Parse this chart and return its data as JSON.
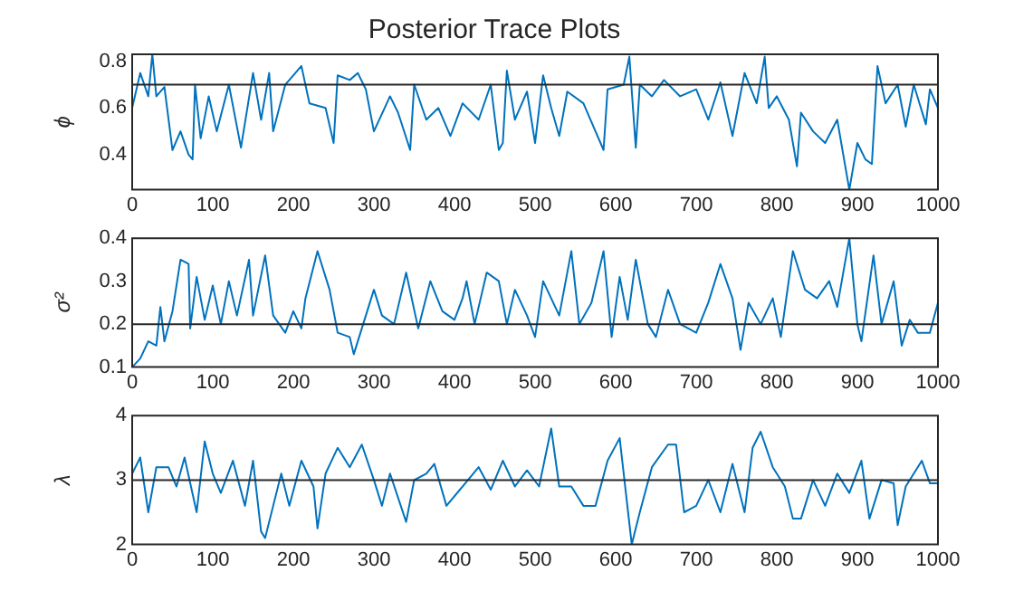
{
  "chart_data": [
    {
      "type": "line",
      "title": "Posterior Trace Plots",
      "ylabel": "ϕ",
      "xlim": [
        0,
        1000
      ],
      "xticks": [
        0,
        100,
        200,
        300,
        400,
        500,
        600,
        700,
        800,
        900,
        1000
      ],
      "ylim": [
        0.25,
        0.83
      ],
      "yticks": [
        0.4,
        0.6,
        0.8
      ],
      "grid": false,
      "legend": false,
      "marker": "none",
      "line_style": "solid",
      "ref_lines": [
        {
          "axis": "y",
          "value": 0.7,
          "color": "#262626"
        }
      ],
      "series": [
        {
          "color": "#0072bd",
          "x": [
            0,
            10,
            20,
            25,
            30,
            40,
            50,
            60,
            70,
            75,
            78,
            85,
            95,
            105,
            120,
            135,
            150,
            160,
            170,
            175,
            190,
            210,
            220,
            240,
            250,
            255,
            270,
            280,
            290,
            300,
            320,
            330,
            345,
            350,
            365,
            380,
            395,
            410,
            430,
            445,
            455,
            460,
            465,
            475,
            490,
            500,
            510,
            520,
            530,
            540,
            560,
            575,
            585,
            590,
            610,
            617,
            625,
            630,
            645,
            660,
            680,
            700,
            715,
            730,
            745,
            760,
            775,
            785,
            790,
            800,
            815,
            825,
            830,
            845,
            860,
            875,
            890,
            900,
            910,
            918,
            925,
            935,
            950,
            960,
            970,
            985,
            990,
            1000
          ],
          "values": [
            0.6,
            0.75,
            0.65,
            0.83,
            0.65,
            0.69,
            0.42,
            0.5,
            0.4,
            0.38,
            0.7,
            0.47,
            0.65,
            0.5,
            0.7,
            0.43,
            0.75,
            0.55,
            0.75,
            0.5,
            0.7,
            0.78,
            0.62,
            0.6,
            0.45,
            0.74,
            0.72,
            0.75,
            0.68,
            0.5,
            0.65,
            0.58,
            0.42,
            0.7,
            0.55,
            0.6,
            0.48,
            0.62,
            0.55,
            0.7,
            0.42,
            0.45,
            0.76,
            0.55,
            0.67,
            0.45,
            0.74,
            0.6,
            0.48,
            0.67,
            0.62,
            0.5,
            0.42,
            0.68,
            0.7,
            0.82,
            0.43,
            0.7,
            0.65,
            0.72,
            0.65,
            0.68,
            0.55,
            0.71,
            0.48,
            0.75,
            0.62,
            0.82,
            0.6,
            0.65,
            0.55,
            0.35,
            0.58,
            0.5,
            0.45,
            0.55,
            0.25,
            0.45,
            0.38,
            0.36,
            0.78,
            0.62,
            0.7,
            0.52,
            0.7,
            0.53,
            0.68,
            0.6
          ]
        }
      ]
    },
    {
      "type": "line",
      "ylabel": "σ²",
      "xlim": [
        0,
        1000
      ],
      "xticks": [
        0,
        100,
        200,
        300,
        400,
        500,
        600,
        700,
        800,
        900,
        1000
      ],
      "ylim": [
        0.1,
        0.4
      ],
      "yticks": [
        0.1,
        0.2,
        0.3,
        0.4
      ],
      "grid": false,
      "legend": false,
      "marker": "none",
      "line_style": "solid",
      "ref_lines": [
        {
          "axis": "y",
          "value": 0.2,
          "color": "#262626"
        }
      ],
      "series": [
        {
          "color": "#0072bd",
          "x": [
            0,
            10,
            20,
            30,
            35,
            40,
            50,
            60,
            70,
            72,
            80,
            90,
            100,
            110,
            120,
            130,
            145,
            150,
            165,
            175,
            190,
            200,
            210,
            215,
            230,
            245,
            255,
            270,
            275,
            280,
            290,
            300,
            310,
            325,
            340,
            355,
            370,
            385,
            400,
            410,
            415,
            425,
            440,
            455,
            465,
            475,
            490,
            500,
            510,
            530,
            545,
            555,
            570,
            585,
            595,
            605,
            615,
            625,
            640,
            650,
            665,
            680,
            700,
            715,
            730,
            745,
            755,
            765,
            780,
            795,
            805,
            820,
            835,
            850,
            865,
            875,
            890,
            900,
            905,
            920,
            930,
            945,
            955,
            965,
            975,
            990,
            1000
          ],
          "values": [
            0.1,
            0.12,
            0.16,
            0.15,
            0.24,
            0.16,
            0.23,
            0.35,
            0.34,
            0.19,
            0.31,
            0.21,
            0.29,
            0.2,
            0.3,
            0.22,
            0.35,
            0.22,
            0.36,
            0.22,
            0.18,
            0.23,
            0.19,
            0.26,
            0.37,
            0.28,
            0.18,
            0.17,
            0.13,
            0.16,
            0.22,
            0.28,
            0.22,
            0.2,
            0.32,
            0.19,
            0.3,
            0.23,
            0.21,
            0.26,
            0.3,
            0.2,
            0.32,
            0.3,
            0.2,
            0.28,
            0.22,
            0.17,
            0.3,
            0.22,
            0.37,
            0.2,
            0.25,
            0.37,
            0.17,
            0.31,
            0.21,
            0.35,
            0.2,
            0.17,
            0.28,
            0.2,
            0.18,
            0.25,
            0.34,
            0.26,
            0.14,
            0.25,
            0.2,
            0.26,
            0.17,
            0.37,
            0.28,
            0.26,
            0.3,
            0.24,
            0.4,
            0.2,
            0.16,
            0.36,
            0.2,
            0.3,
            0.15,
            0.21,
            0.18,
            0.18,
            0.25
          ]
        }
      ]
    },
    {
      "type": "line",
      "ylabel": "λ",
      "xlim": [
        0,
        1000
      ],
      "xticks": [
        0,
        100,
        200,
        300,
        400,
        500,
        600,
        700,
        800,
        900,
        1000
      ],
      "ylim": [
        2,
        4
      ],
      "yticks": [
        2,
        3,
        4
      ],
      "grid": false,
      "legend": false,
      "marker": "none",
      "line_style": "solid",
      "ref_lines": [
        {
          "axis": "y",
          "value": 3,
          "color": "#262626"
        }
      ],
      "series": [
        {
          "color": "#0072bd",
          "x": [
            0,
            10,
            20,
            30,
            45,
            55,
            65,
            80,
            90,
            100,
            110,
            125,
            140,
            150,
            160,
            165,
            175,
            185,
            195,
            210,
            225,
            230,
            240,
            255,
            270,
            285,
            300,
            310,
            320,
            340,
            350,
            365,
            375,
            390,
            410,
            430,
            445,
            460,
            475,
            490,
            505,
            515,
            520,
            530,
            545,
            560,
            575,
            590,
            605,
            620,
            630,
            645,
            665,
            675,
            685,
            700,
            715,
            730,
            745,
            760,
            770,
            780,
            795,
            810,
            820,
            830,
            845,
            860,
            875,
            890,
            905,
            915,
            930,
            945,
            950,
            960,
            980,
            990,
            1000
          ],
          "values": [
            3.1,
            3.35,
            2.5,
            3.2,
            3.2,
            2.9,
            3.35,
            2.5,
            3.6,
            3.1,
            2.8,
            3.3,
            2.6,
            3.3,
            2.2,
            2.1,
            2.6,
            3.1,
            2.6,
            3.3,
            2.9,
            2.25,
            3.1,
            3.5,
            3.2,
            3.55,
            3.0,
            2.6,
            3.1,
            2.35,
            3.0,
            3.1,
            3.25,
            2.6,
            2.9,
            3.2,
            2.85,
            3.3,
            2.9,
            3.15,
            2.9,
            3.5,
            3.8,
            2.9,
            2.9,
            2.6,
            2.6,
            3.3,
            3.65,
            2.0,
            2.5,
            3.2,
            3.55,
            3.55,
            2.5,
            2.6,
            3.0,
            2.5,
            3.25,
            2.5,
            3.5,
            3.75,
            3.2,
            2.9,
            2.4,
            2.4,
            3.0,
            2.6,
            3.1,
            2.8,
            3.3,
            2.4,
            3.0,
            2.95,
            2.3,
            2.9,
            3.3,
            2.95,
            2.95
          ]
        }
      ]
    }
  ]
}
